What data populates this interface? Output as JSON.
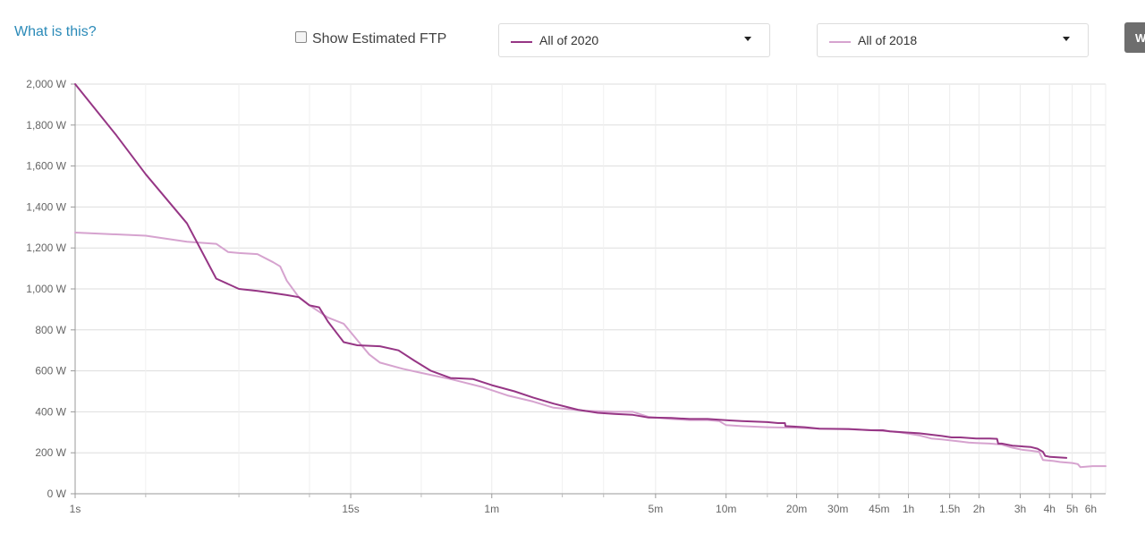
{
  "header": {
    "what_is_this": "What is this?",
    "show_estimated_ftp": "Show Estimated FTP",
    "side_button": "W"
  },
  "period_selects": [
    {
      "label": "All of 2020",
      "color": "#963685"
    },
    {
      "label": "All of 2018",
      "color": "#d6a3cf"
    }
  ],
  "chart_data": {
    "type": "line",
    "title": "",
    "xlabel": "",
    "ylabel": "",
    "x_scale": "log",
    "x_unit": "seconds",
    "xlim": [
      1,
      25000
    ],
    "ylim": [
      0,
      2000
    ],
    "grid": true,
    "y_ticks": [
      {
        "v": 0,
        "label": "0 W"
      },
      {
        "v": 200,
        "label": "200 W"
      },
      {
        "v": 400,
        "label": "400 W"
      },
      {
        "v": 600,
        "label": "600 W"
      },
      {
        "v": 800,
        "label": "800 W"
      },
      {
        "v": 1000,
        "label": "1,000 W"
      },
      {
        "v": 1200,
        "label": "1,200 W"
      },
      {
        "v": 1400,
        "label": "1,400 W"
      },
      {
        "v": 1600,
        "label": "1,600 W"
      },
      {
        "v": 1800,
        "label": "1,800 W"
      },
      {
        "v": 2000,
        "label": "2,000 W"
      }
    ],
    "x_ticks": [
      {
        "v": 1,
        "label": "1s"
      },
      {
        "v": 15,
        "label": "15s"
      },
      {
        "v": 60,
        "label": "1m"
      },
      {
        "v": 300,
        "label": "5m"
      },
      {
        "v": 600,
        "label": "10m"
      },
      {
        "v": 1200,
        "label": "20m"
      },
      {
        "v": 1800,
        "label": "30m"
      },
      {
        "v": 2700,
        "label": "45m"
      },
      {
        "v": 3600,
        "label": "1h"
      },
      {
        "v": 5400,
        "label": "1.5h"
      },
      {
        "v": 7200,
        "label": "2h"
      },
      {
        "v": 10800,
        "label": "3h"
      },
      {
        "v": 14400,
        "label": "4h"
      },
      {
        "v": 18000,
        "label": "5h"
      },
      {
        "v": 21600,
        "label": "6h"
      }
    ],
    "x_minor_gridlines": [
      2,
      5,
      10,
      30,
      120,
      180,
      900
    ],
    "series": [
      {
        "name": "All of 2020",
        "color": "#963685",
        "points": [
          [
            1,
            2000
          ],
          [
            1.5,
            1750
          ],
          [
            2,
            1560
          ],
          [
            3,
            1320
          ],
          [
            4,
            1050
          ],
          [
            5,
            1000
          ],
          [
            6,
            990
          ],
          [
            7,
            980
          ],
          [
            8,
            970
          ],
          [
            9,
            960
          ],
          [
            10,
            920
          ],
          [
            11,
            910
          ],
          [
            12,
            840
          ],
          [
            14,
            740
          ],
          [
            16,
            725
          ],
          [
            20,
            720
          ],
          [
            24,
            700
          ],
          [
            28,
            650
          ],
          [
            33,
            600
          ],
          [
            40,
            565
          ],
          [
            50,
            560
          ],
          [
            60,
            530
          ],
          [
            75,
            500
          ],
          [
            90,
            470
          ],
          [
            110,
            440
          ],
          [
            140,
            410
          ],
          [
            170,
            395
          ],
          [
            200,
            390
          ],
          [
            240,
            385
          ],
          [
            280,
            372
          ],
          [
            350,
            370
          ],
          [
            420,
            365
          ],
          [
            500,
            365
          ],
          [
            620,
            358
          ],
          [
            700,
            355
          ],
          [
            900,
            350
          ],
          [
            1000,
            345
          ],
          [
            1070,
            345
          ],
          [
            1075,
            330
          ],
          [
            1300,
            325
          ],
          [
            1500,
            318
          ],
          [
            2000,
            316
          ],
          [
            2500,
            310
          ],
          [
            2800,
            310
          ],
          [
            3000,
            305
          ],
          [
            4000,
            295
          ],
          [
            5000,
            282
          ],
          [
            5500,
            275
          ],
          [
            6000,
            275
          ],
          [
            7000,
            270
          ],
          [
            8000,
            270
          ],
          [
            8600,
            268
          ],
          [
            8700,
            245
          ],
          [
            9000,
            245
          ],
          [
            10000,
            235
          ],
          [
            12000,
            228
          ],
          [
            12800,
            220
          ],
          [
            13500,
            205
          ],
          [
            13800,
            185
          ],
          [
            14500,
            180
          ],
          [
            17000,
            175
          ]
        ]
      },
      {
        "name": "All of 2018",
        "color": "#d6a3cf",
        "points": [
          [
            1,
            1275
          ],
          [
            2,
            1260
          ],
          [
            3,
            1230
          ],
          [
            4,
            1220
          ],
          [
            4.5,
            1180
          ],
          [
            5,
            1175
          ],
          [
            6,
            1170
          ],
          [
            7,
            1130
          ],
          [
            7.5,
            1110
          ],
          [
            8,
            1040
          ],
          [
            9,
            960
          ],
          [
            10,
            920
          ],
          [
            12,
            860
          ],
          [
            14,
            830
          ],
          [
            16,
            750
          ],
          [
            18,
            680
          ],
          [
            20,
            640
          ],
          [
            25,
            610
          ],
          [
            30,
            590
          ],
          [
            40,
            560
          ],
          [
            55,
            520
          ],
          [
            70,
            480
          ],
          [
            90,
            450
          ],
          [
            110,
            420
          ],
          [
            150,
            405
          ],
          [
            200,
            400
          ],
          [
            240,
            400
          ],
          [
            280,
            375
          ],
          [
            350,
            365
          ],
          [
            420,
            360
          ],
          [
            500,
            360
          ],
          [
            560,
            355
          ],
          [
            600,
            335
          ],
          [
            700,
            330
          ],
          [
            900,
            325
          ],
          [
            1200,
            322
          ],
          [
            1500,
            318
          ],
          [
            2000,
            315
          ],
          [
            2500,
            310
          ],
          [
            3000,
            305
          ],
          [
            3300,
            300
          ],
          [
            4000,
            285
          ],
          [
            4500,
            270
          ],
          [
            5000,
            265
          ],
          [
            6000,
            255
          ],
          [
            6500,
            250
          ],
          [
            7000,
            248
          ],
          [
            8000,
            245
          ],
          [
            9000,
            240
          ],
          [
            10000,
            225
          ],
          [
            11000,
            215
          ],
          [
            12000,
            210
          ],
          [
            13000,
            205
          ],
          [
            13500,
            165
          ],
          [
            15000,
            160
          ],
          [
            16000,
            155
          ],
          [
            18000,
            150
          ],
          [
            19000,
            145
          ],
          [
            19500,
            130
          ],
          [
            22000,
            135
          ],
          [
            25000,
            135
          ]
        ]
      }
    ]
  }
}
